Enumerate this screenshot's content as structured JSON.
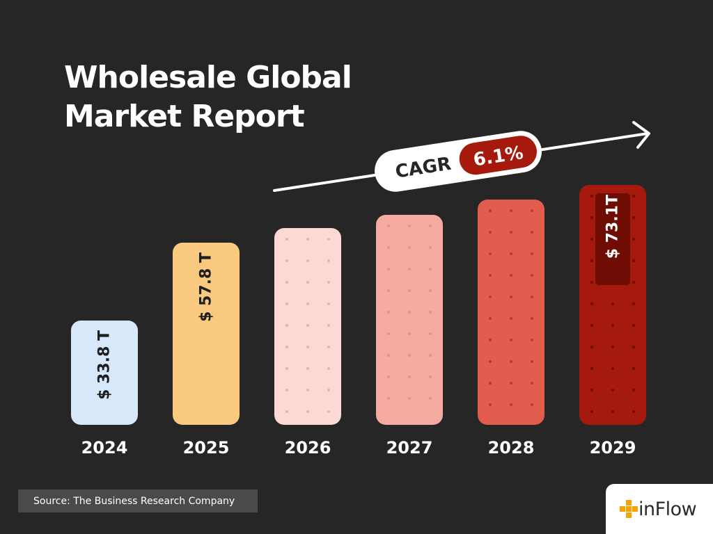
{
  "title_lines": [
    "Wholesale Global",
    "Market Report"
  ],
  "cagr": {
    "label": "CAGR",
    "value": "6.1%"
  },
  "source": "Source: The Business Research Company",
  "brand": "inFlow",
  "colors": {
    "background": "#262626",
    "bars": [
      "#d7e8fa",
      "#f8c97e",
      "#fbd9d4",
      "#f5aba1",
      "#e35d4e",
      "#a51a0d"
    ],
    "cagr_badge": "#a51a0d",
    "logo_accent": "#f4a300"
  },
  "chart_data": {
    "type": "bar",
    "categories": [
      "2024",
      "2025",
      "2026",
      "2027",
      "2028",
      "2029"
    ],
    "values": [
      33.8,
      57.8,
      null,
      null,
      null,
      73.1
    ],
    "value_labels": [
      "$ 33.8 T",
      "$ 57.8 T",
      "",
      "",
      "",
      "$ 73.1T"
    ],
    "unit": "T",
    "title": "Wholesale Global Market Report",
    "xlabel": "",
    "ylabel": "",
    "grid": false,
    "legend": "none"
  }
}
